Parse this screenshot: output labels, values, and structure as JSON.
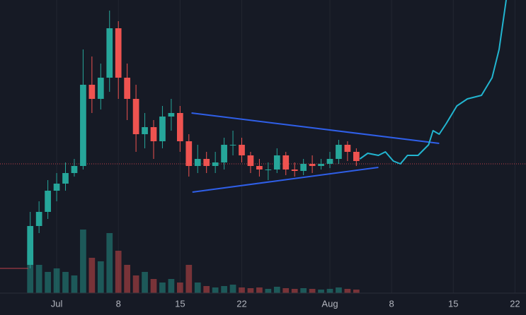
{
  "chart_data": {
    "type": "candlestick",
    "x": [
      -3,
      -2,
      -1,
      0,
      1,
      2,
      3,
      4,
      5,
      6,
      7,
      8,
      9,
      10,
      11,
      12,
      13,
      14,
      15,
      16,
      17,
      18,
      19,
      20,
      21,
      22,
      23,
      24,
      25,
      26,
      27,
      28,
      29,
      30,
      31,
      32,
      33,
      34
    ],
    "open": [
      40,
      95,
      115,
      145,
      155,
      170,
      180,
      295,
      275,
      305,
      375,
      305,
      275,
      225,
      235,
      215,
      250,
      255,
      215,
      180,
      190,
      180,
      185,
      210,
      210,
      195,
      180,
      175,
      175,
      195,
      175,
      173,
      183,
      180,
      183,
      190,
      210,
      200
    ],
    "high": [
      115,
      130,
      160,
      170,
      185,
      190,
      345,
      335,
      325,
      400,
      385,
      325,
      295,
      255,
      245,
      265,
      275,
      265,
      225,
      210,
      200,
      200,
      220,
      230,
      220,
      200,
      190,
      185,
      205,
      200,
      185,
      190,
      195,
      190,
      200,
      217,
      215,
      205
    ],
    "low": [
      35,
      85,
      105,
      130,
      145,
      165,
      175,
      255,
      260,
      285,
      275,
      245,
      200,
      205,
      190,
      205,
      230,
      200,
      165,
      170,
      170,
      170,
      175,
      195,
      185,
      170,
      165,
      160,
      170,
      167,
      165,
      167,
      170,
      175,
      177,
      183,
      187,
      180
    ],
    "close": [
      95,
      115,
      145,
      155,
      170,
      180,
      295,
      275,
      305,
      375,
      305,
      275,
      225,
      235,
      215,
      250,
      255,
      215,
      180,
      190,
      180,
      185,
      210,
      210,
      195,
      180,
      175,
      175,
      195,
      175,
      173,
      183,
      180,
      183,
      190,
      210,
      200,
      187
    ],
    "volume": [
      60,
      40,
      30,
      35,
      30,
      25,
      90,
      50,
      45,
      85,
      60,
      40,
      25,
      30,
      20,
      15,
      20,
      15,
      40,
      15,
      10,
      8,
      10,
      12,
      8,
      7,
      8,
      6,
      9,
      7,
      6,
      7,
      6,
      5,
      6,
      8,
      6,
      5
    ],
    "up_color": "#26a69a",
    "down_color": "#ef5350",
    "xlim": [
      -6.43,
      53.25
    ],
    "ylim": [
      0,
      415
    ],
    "xticks": [
      {
        "value": 0,
        "label": "Jul"
      },
      {
        "value": 7,
        "label": "8"
      },
      {
        "value": 14,
        "label": "15"
      },
      {
        "value": 21,
        "label": "22"
      },
      {
        "value": 31,
        "label": "Aug"
      },
      {
        "value": 38,
        "label": "8"
      },
      {
        "value": 45,
        "label": "15"
      },
      {
        "value": 52,
        "label": "22"
      }
    ],
    "grid": true,
    "projection": {
      "color": "#22b5d0",
      "x": [
        34.4,
        35.3,
        36.5,
        37.3,
        38.2,
        39.0,
        39.8,
        41.0,
        42.2,
        42.7,
        43.4,
        44.2,
        45.4,
        46.6,
        48.2,
        49.4,
        50.2,
        51.0
      ],
      "values": [
        190,
        198,
        195,
        200,
        187,
        183,
        195,
        195,
        210,
        230,
        225,
        240,
        265,
        275,
        280,
        305,
        345,
        415
      ]
    },
    "trendlines": {
      "color": "#2f5fe8",
      "upper": {
        "x": [
          15.3,
          43.4
        ],
        "values": [
          255,
          212
        ]
      },
      "lower": {
        "x": [
          15.4,
          36.5
        ],
        "values": [
          143,
          178
        ]
      }
    },
    "price_line": {
      "value": 183,
      "color": "#c2404a"
    }
  }
}
